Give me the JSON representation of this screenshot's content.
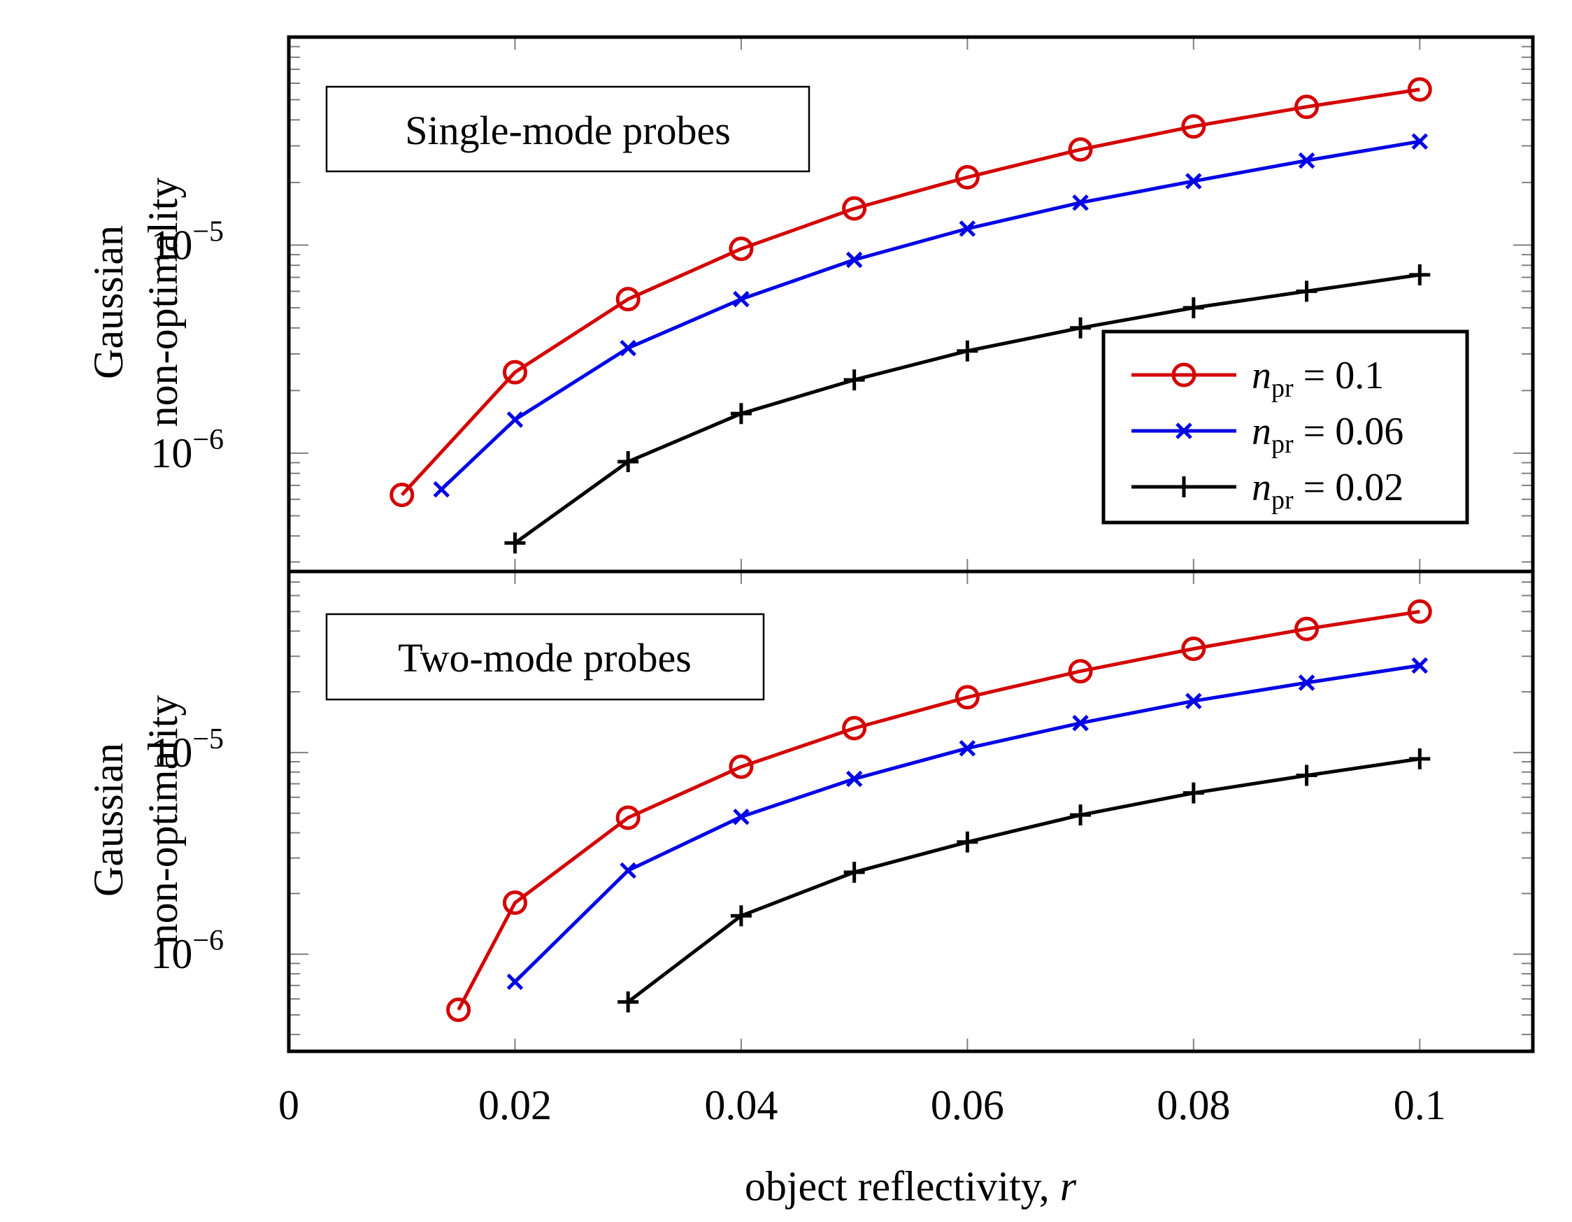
{
  "colors": {
    "series": [
      "#d40000",
      "#0000e6",
      "#000000"
    ],
    "axis": "#000000",
    "tick": "#808080"
  },
  "chart_data": {
    "type": "line",
    "shared_x_axis": {
      "label_text": "object reflectivity, ",
      "label_var": "r",
      "xlim": [
        0,
        0.11
      ],
      "ticks": [
        0,
        0.02,
        0.04,
        0.06,
        0.08,
        0.1
      ],
      "tick_labels": [
        "0",
        "0.02",
        "0.04",
        "0.06",
        "0.08",
        "0.1"
      ]
    },
    "legend": {
      "location": "top-right of upper panel",
      "entries": [
        {
          "symbol": "n",
          "subscript": "pr",
          "value": " = 0.1",
          "marker": "circle"
        },
        {
          "symbol": "n",
          "subscript": "pr",
          "value": " = 0.06",
          "marker": "x"
        },
        {
          "symbol": "n",
          "subscript": "pr",
          "value": " = 0.02",
          "marker": "plus"
        }
      ]
    },
    "panels": [
      {
        "title": "Single-mode probes",
        "ylabel": [
          "Gaussian",
          "non-optimality"
        ],
        "yscale": "log",
        "ylim": [
          2.7e-07,
          0.0001
        ],
        "yticks": [
          {
            "value": 1e-06,
            "base": "10",
            "exp": "−6"
          },
          {
            "value": 1e-05,
            "base": "10",
            "exp": "−5"
          }
        ],
        "series": [
          {
            "marker": "circle",
            "x": [
              0.01,
              0.02,
              0.03,
              0.04,
              0.05,
              0.06,
              0.07,
              0.08,
              0.09,
              0.1
            ],
            "y": [
              6.3e-07,
              2.45e-06,
              5.5e-06,
              9.6e-06,
              1.5e-05,
              2.12e-05,
              2.88e-05,
              3.72e-05,
              4.62e-05,
              5.6e-05
            ]
          },
          {
            "marker": "x",
            "x": [
              0.0135,
              0.02,
              0.03,
              0.04,
              0.05,
              0.06,
              0.07,
              0.08,
              0.09,
              0.1
            ],
            "y": [
              6.7e-07,
              1.45e-06,
              3.2e-06,
              5.5e-06,
              8.5e-06,
              1.2e-05,
              1.6e-05,
              2.03e-05,
              2.55e-05,
              3.15e-05
            ]
          },
          {
            "marker": "plus",
            "x": [
              0.02,
              0.03,
              0.04,
              0.05,
              0.06,
              0.07,
              0.08,
              0.09,
              0.1
            ],
            "y": [
              3.7e-07,
              9.1e-07,
              1.55e-06,
              2.25e-06,
              3.1e-06,
              4e-06,
              5e-06,
              6e-06,
              7.2e-06
            ]
          }
        ]
      },
      {
        "title": "Two-mode probes",
        "ylabel": [
          "Gaussian",
          "non-optimality"
        ],
        "yscale": "log",
        "ylim": [
          3.3e-07,
          7.9e-05
        ],
        "yticks": [
          {
            "value": 1e-06,
            "base": "10",
            "exp": "−6"
          },
          {
            "value": 1e-05,
            "base": "10",
            "exp": "−5"
          }
        ],
        "series": [
          {
            "marker": "circle",
            "x": [
              0.015,
              0.02,
              0.03,
              0.04,
              0.05,
              0.06,
              0.07,
              0.08,
              0.09,
              0.1
            ],
            "y": [
              5.3e-07,
              1.8e-06,
              4.75e-06,
              8.5e-06,
              1.32e-05,
              1.88e-05,
              2.53e-05,
              3.27e-05,
              4.1e-05,
              5e-05
            ]
          },
          {
            "marker": "x",
            "x": [
              0.02,
              0.03,
              0.04,
              0.05,
              0.06,
              0.07,
              0.08,
              0.09,
              0.1
            ],
            "y": [
              7.3e-07,
              2.6e-06,
              4.8e-06,
              7.4e-06,
              1.05e-05,
              1.4e-05,
              1.8e-05,
              2.22e-05,
              2.7e-05
            ]
          },
          {
            "marker": "plus",
            "x": [
              0.03,
              0.04,
              0.05,
              0.06,
              0.07,
              0.08,
              0.09,
              0.1
            ],
            "y": [
              5.8e-07,
              1.55e-06,
              2.55e-06,
              3.6e-06,
              4.9e-06,
              6.3e-06,
              7.7e-06,
              9.3e-06
            ]
          }
        ]
      }
    ]
  }
}
